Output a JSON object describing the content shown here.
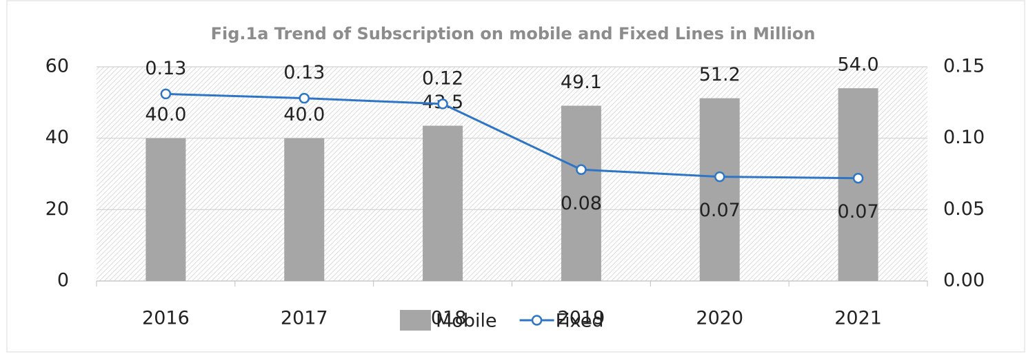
{
  "chart_data": {
    "type": "bar+line",
    "title": "Fig.1a Trend of Subscription on mobile and Fixed Lines in Million",
    "categories": [
      "2016",
      "2017",
      "2018",
      "2019",
      "2020",
      "2021"
    ],
    "series": [
      {
        "name": "Mobile",
        "type": "bar",
        "color": "#a6a6a6",
        "values": [
          40.0,
          40.0,
          43.5,
          49.1,
          51.2,
          54.0
        ],
        "value_labels": [
          "40.0",
          "40.0",
          "43.5",
          "49.1",
          "51.2",
          "54.0"
        ]
      },
      {
        "name": "Fixed",
        "type": "line",
        "axis": "y2",
        "color": "#2e75c6",
        "values": [
          0.131,
          0.128,
          0.124,
          0.078,
          0.073,
          0.072
        ],
        "value_labels": [
          "0.13",
          "0.13",
          "0.12",
          "0.08",
          "0.07",
          "0.07"
        ]
      }
    ],
    "ylim": [
      0,
      60
    ],
    "yticks": [
      0,
      20,
      40,
      60
    ],
    "y2lim": [
      0,
      0.15
    ],
    "y2ticks": [
      {
        "value": 0,
        "label": "0.00"
      },
      {
        "value": 0.05,
        "label": "0.05"
      },
      {
        "value": 0.1,
        "label": "0.10"
      },
      {
        "value": 0.15,
        "label": "0.15"
      }
    ],
    "grid": true,
    "legend": "bottom"
  }
}
